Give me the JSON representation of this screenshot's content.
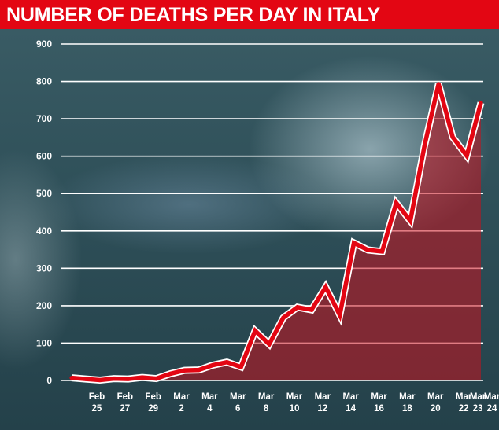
{
  "header": {
    "title": "NUMBER OF DEATHS PER DAY IN ITALY"
  },
  "colors": {
    "title_bg": "#e30613",
    "line": "#e30613",
    "area": "#c8101e",
    "grid": "#ffffff",
    "text": "#ffffff"
  },
  "chart_data": {
    "type": "area",
    "title": "NUMBER OF DEATHS PER DAY IN ITALY",
    "xlabel": "",
    "ylabel": "",
    "ylim": [
      0,
      900
    ],
    "y_ticks": [
      0,
      100,
      200,
      300,
      400,
      500,
      600,
      700,
      800,
      900
    ],
    "grid": true,
    "x": [
      "Feb 24",
      "Feb 25",
      "Feb 26",
      "Feb 27",
      "Feb 28",
      "Feb 29",
      "Mar 1",
      "Mar 2",
      "Mar 3",
      "Mar 4",
      "Mar 5",
      "Mar 6",
      "Mar 7",
      "Mar 8",
      "Mar 9",
      "Mar 10",
      "Mar 11",
      "Mar 12",
      "Mar 13",
      "Mar 14",
      "Mar 15",
      "Mar 16",
      "Mar 17",
      "Mar 18",
      "Mar 19",
      "Mar 20",
      "Mar 21",
      "Mar 22",
      "Mar 23",
      "Mar 24"
    ],
    "x_tick_labels": [
      {
        "month": "Feb",
        "day": "25"
      },
      {
        "month": "Feb",
        "day": "27"
      },
      {
        "month": "Feb",
        "day": "29"
      },
      {
        "month": "Mar",
        "day": "2"
      },
      {
        "month": "Mar",
        "day": "4"
      },
      {
        "month": "Mar",
        "day": "6"
      },
      {
        "month": "Mar",
        "day": "8"
      },
      {
        "month": "Mar",
        "day": "10"
      },
      {
        "month": "Mar",
        "day": "12"
      },
      {
        "month": "Mar",
        "day": "14"
      },
      {
        "month": "Mar",
        "day": "16"
      },
      {
        "month": "Mar",
        "day": "18"
      },
      {
        "month": "Mar",
        "day": "20"
      },
      {
        "month": "Mar",
        "day": "22"
      },
      {
        "month": "Mar",
        "day": "23"
      },
      {
        "month": "Mar",
        "day": "24"
      }
    ],
    "series": [
      {
        "values": [
          7,
          4,
          1,
          5,
          4,
          8,
          5,
          18,
          27,
          28,
          41,
          49,
          36,
          133,
          97,
          168,
          196,
          189,
          250,
          175,
          368,
          349,
          345,
          475,
          427,
          627,
          793,
          651,
          601,
          743
        ]
      }
    ]
  }
}
